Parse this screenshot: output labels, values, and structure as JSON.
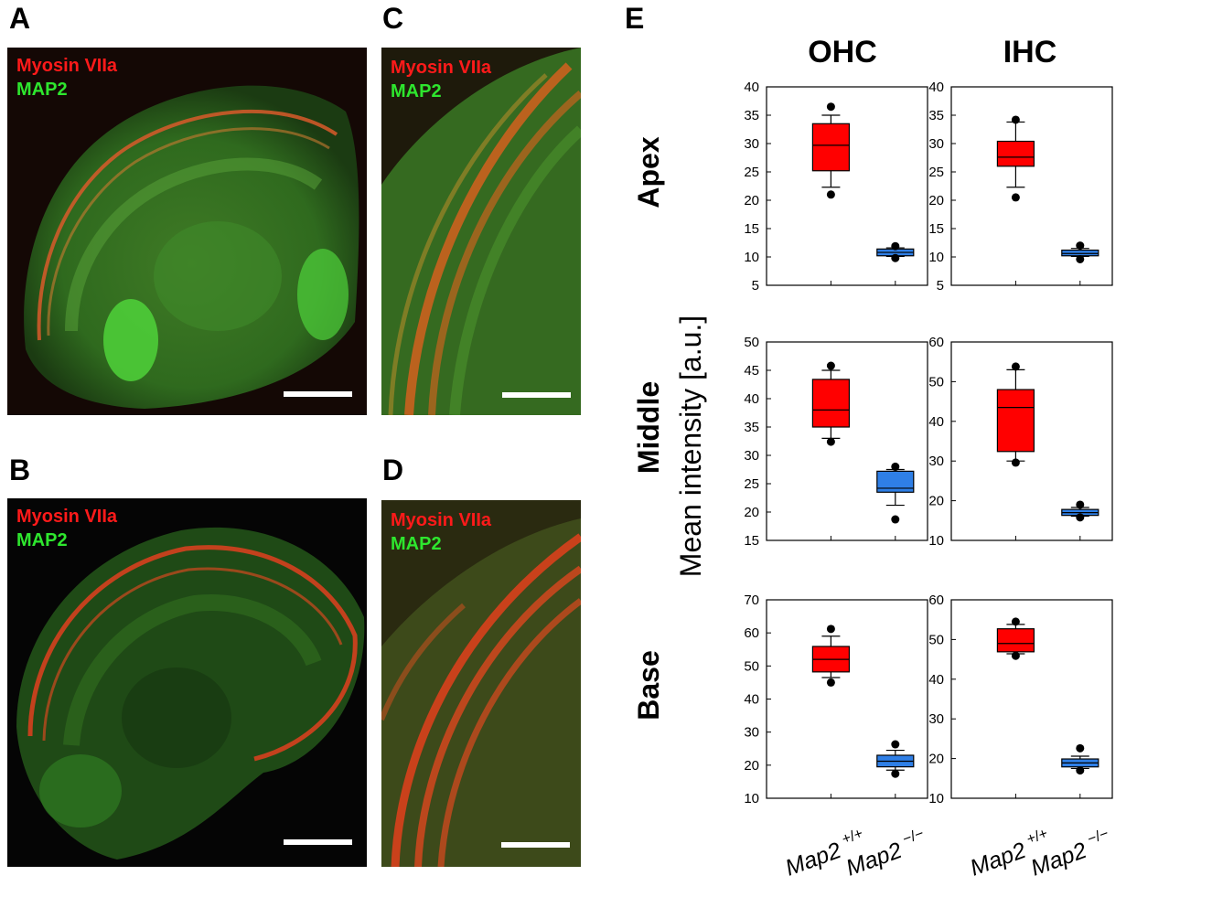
{
  "panels": {
    "A": {
      "letter": "A",
      "label_red": "Myosin VIIa",
      "label_green": "MAP2"
    },
    "B": {
      "letter": "B",
      "label_red": "Myosin VIIa",
      "label_green": "MAP2"
    },
    "C": {
      "letter": "C",
      "label_red": "Myosin VIIa",
      "label_green": "MAP2"
    },
    "D": {
      "letter": "D",
      "label_red": "Myosin VIIa",
      "label_green": "MAP2"
    },
    "E": {
      "letter": "E"
    }
  },
  "colors": {
    "wildtype": "#ff0000",
    "knockout": "#2f7fe6",
    "myosin_stain": "#ff1a1a",
    "map2_stain": "#2ee62e"
  },
  "chart_data": {
    "type": "boxplot",
    "column_titles": [
      "OHC",
      "IHC"
    ],
    "row_titles": [
      "Apex",
      "Middle",
      "Base"
    ],
    "ylabel": "Mean intensity [a.u.]",
    "categories": [
      "Map2 +/+",
      "Map2 −/−"
    ],
    "category_parts": [
      {
        "name": "Map2",
        "sup": "+/+"
      },
      {
        "name": "Map2",
        "sup": "−/−"
      }
    ],
    "plots": [
      {
        "row": "Apex",
        "col": "OHC",
        "ylim": [
          5,
          40
        ],
        "yticks": [
          5,
          10,
          15,
          20,
          25,
          30,
          35,
          40
        ],
        "boxes": [
          {
            "group": "Map2 +/+",
            "whislo": 22.3,
            "q1": 25.2,
            "med": 29.7,
            "q3": 33.5,
            "whishi": 35,
            "outliers": [
              21,
              36.5
            ]
          },
          {
            "group": "Map2 −/−",
            "whislo": 10.1,
            "q1": 10.2,
            "med": 10.8,
            "q3": 11.4,
            "whishi": 11.6,
            "outliers": [
              9.8,
              11.9
            ]
          }
        ]
      },
      {
        "row": "Apex",
        "col": "IHC",
        "ylim": [
          5,
          40
        ],
        "yticks": [
          5,
          10,
          15,
          20,
          25,
          30,
          35,
          40
        ],
        "boxes": [
          {
            "group": "Map2 +/+",
            "whislo": 22.3,
            "q1": 26,
            "med": 27.6,
            "q3": 30.4,
            "whishi": 33.8,
            "outliers": [
              20.5,
              34.2
            ]
          },
          {
            "group": "Map2 −/−",
            "whislo": 10.1,
            "q1": 10.2,
            "med": 10.6,
            "q3": 11.2,
            "whishi": 11.5,
            "outliers": [
              9.6,
              12
            ]
          }
        ]
      },
      {
        "row": "Middle",
        "col": "OHC",
        "ylim": [
          15,
          50
        ],
        "yticks": [
          15,
          20,
          25,
          30,
          35,
          40,
          45,
          50
        ],
        "boxes": [
          {
            "group": "Map2 +/+",
            "whislo": 33,
            "q1": 35,
            "med": 38,
            "q3": 43.4,
            "whishi": 45,
            "outliers": [
              32.4,
              45.8
            ]
          },
          {
            "group": "Map2 −/−",
            "whislo": 21.2,
            "q1": 23.5,
            "med": 24.2,
            "q3": 27.2,
            "whishi": 27.5,
            "outliers": [
              18.7,
              28
            ]
          }
        ]
      },
      {
        "row": "Middle",
        "col": "IHC",
        "ylim": [
          10,
          60
        ],
        "yticks": [
          10,
          20,
          30,
          40,
          50,
          60
        ],
        "boxes": [
          {
            "group": "Map2 +/+",
            "whislo": 30,
            "q1": 32.4,
            "med": 43.5,
            "q3": 48,
            "whishi": 53,
            "outliers": [
              29.6,
              53.8
            ]
          },
          {
            "group": "Map2 −/−",
            "whislo": 16.1,
            "q1": 16.3,
            "med": 17,
            "q3": 17.8,
            "whishi": 18.3,
            "outliers": [
              15.8,
              19
            ]
          }
        ]
      },
      {
        "row": "Base",
        "col": "OHC",
        "ylim": [
          10,
          70
        ],
        "yticks": [
          10,
          20,
          30,
          40,
          50,
          60,
          70
        ],
        "boxes": [
          {
            "group": "Map2 +/+",
            "whislo": 46.5,
            "q1": 48.2,
            "med": 52,
            "q3": 55.9,
            "whishi": 59,
            "outliers": [
              45,
              61.2
            ]
          },
          {
            "group": "Map2 −/−",
            "whislo": 18.5,
            "q1": 19.5,
            "med": 21.2,
            "q3": 23,
            "whishi": 24.5,
            "outliers": [
              17.4,
              26.3
            ]
          }
        ]
      },
      {
        "row": "Base",
        "col": "IHC",
        "ylim": [
          10,
          60
        ],
        "yticks": [
          10,
          20,
          30,
          40,
          50,
          60
        ],
        "boxes": [
          {
            "group": "Map2 +/+",
            "whislo": 46.4,
            "q1": 46.9,
            "med": 49,
            "q3": 52.7,
            "whishi": 53.8,
            "outliers": [
              45.9,
              54.5
            ]
          },
          {
            "group": "Map2 −/−",
            "whislo": 17.5,
            "q1": 17.9,
            "med": 18.9,
            "q3": 19.9,
            "whishi": 20.6,
            "outliers": [
              17,
              22.6
            ]
          }
        ]
      }
    ]
  }
}
